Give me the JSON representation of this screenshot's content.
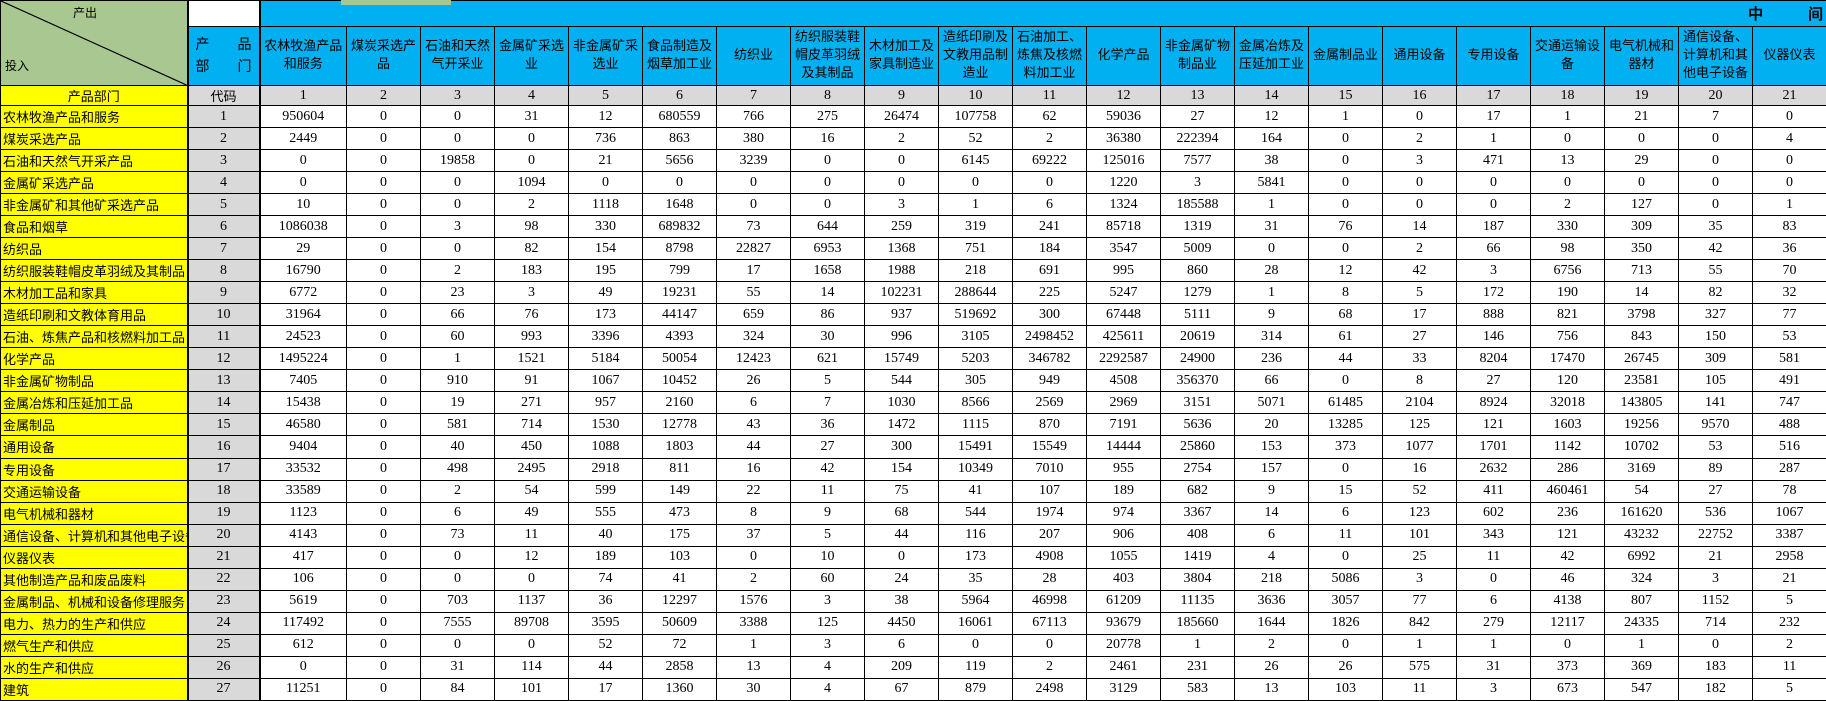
{
  "colors": {
    "header_blue": "#00B0F0",
    "label_yellow": "#FFFF00",
    "code_gray": "#D9D9D9",
    "corner_green": "#A9C791"
  },
  "table": {
    "corner": {
      "top_label": "产出",
      "bottom_label": "投入"
    },
    "banner_label": "中　　　间",
    "dept_line1": "产　　品",
    "dept_line2": "部　　门",
    "row_header_label": "产品部门",
    "code_label": "代码",
    "columns": [
      {
        "code": "1",
        "name": "农林牧渔产品和服务"
      },
      {
        "code": "2",
        "name": "煤炭采选产品"
      },
      {
        "code": "3",
        "name": "石油和天然气开采业"
      },
      {
        "code": "4",
        "name": "金属矿采选业"
      },
      {
        "code": "5",
        "name": "非金属矿采选业"
      },
      {
        "code": "6",
        "name": "食品制造及烟草加工业"
      },
      {
        "code": "7",
        "name": "纺织业"
      },
      {
        "code": "8",
        "name": "纺织服装鞋帽皮革羽绒及其制品"
      },
      {
        "code": "9",
        "name": "木材加工及家具制造业"
      },
      {
        "code": "10",
        "name": "造纸印刷及文教用品制造业"
      },
      {
        "code": "11",
        "name": "石油加工、炼焦及核燃料加工业"
      },
      {
        "code": "12",
        "name": "化学产品"
      },
      {
        "code": "13",
        "name": "非金属矿物制品业"
      },
      {
        "code": "14",
        "name": "金属冶炼及压延加工业"
      },
      {
        "code": "15",
        "name": "金属制品业"
      },
      {
        "code": "16",
        "name": "通用设备"
      },
      {
        "code": "17",
        "name": "专用设备"
      },
      {
        "code": "18",
        "name": "交通运输设备"
      },
      {
        "code": "19",
        "name": "电气机械和器材"
      },
      {
        "code": "20",
        "name": "通信设备、计算机和其他电子设备"
      },
      {
        "code": "21",
        "name": "仪器仪表"
      }
    ],
    "rows": [
      {
        "code": "1",
        "label": "农林牧渔产品和服务",
        "values": [
          950604,
          0,
          0,
          31,
          12,
          680559,
          766,
          275,
          26474,
          107758,
          62,
          59036,
          27,
          12,
          1,
          0,
          17,
          1,
          21,
          7,
          0
        ]
      },
      {
        "code": "2",
        "label": "煤炭采选产品",
        "values": [
          2449,
          0,
          0,
          0,
          736,
          863,
          380,
          16,
          2,
          52,
          2,
          36380,
          222394,
          164,
          0,
          2,
          1,
          0,
          0,
          0,
          4
        ]
      },
      {
        "code": "3",
        "label": "石油和天然气开采产品",
        "values": [
          0,
          0,
          19858,
          0,
          21,
          5656,
          3239,
          0,
          0,
          6145,
          69222,
          125016,
          7577,
          38,
          0,
          3,
          471,
          13,
          29,
          0,
          0
        ]
      },
      {
        "code": "4",
        "label": "金属矿采选产品",
        "values": [
          0,
          0,
          0,
          1094,
          0,
          0,
          0,
          0,
          0,
          0,
          0,
          1220,
          3,
          5841,
          0,
          0,
          0,
          0,
          0,
          0,
          0
        ]
      },
      {
        "code": "5",
        "label": "非金属矿和其他矿采选产品",
        "values": [
          10,
          0,
          0,
          2,
          1118,
          1648,
          0,
          0,
          3,
          1,
          6,
          1324,
          185588,
          1,
          0,
          0,
          0,
          2,
          127,
          0,
          1
        ]
      },
      {
        "code": "6",
        "label": "食品和烟草",
        "values": [
          1086038,
          0,
          3,
          98,
          330,
          689832,
          73,
          644,
          259,
          319,
          241,
          85718,
          1319,
          31,
          76,
          14,
          187,
          330,
          309,
          35,
          83
        ]
      },
      {
        "code": "7",
        "label": "纺织品",
        "values": [
          29,
          0,
          0,
          82,
          154,
          8798,
          22827,
          6953,
          1368,
          751,
          184,
          3547,
          5009,
          0,
          0,
          2,
          66,
          98,
          350,
          42,
          36
        ]
      },
      {
        "code": "8",
        "label": "纺织服装鞋帽皮革羽绒及其制品",
        "values": [
          16790,
          0,
          2,
          183,
          195,
          799,
          17,
          1658,
          1988,
          218,
          691,
          995,
          860,
          28,
          12,
          42,
          3,
          6756,
          713,
          55,
          70
        ]
      },
      {
        "code": "9",
        "label": "木材加工品和家具",
        "values": [
          6772,
          0,
          23,
          3,
          49,
          19231,
          55,
          14,
          102231,
          288644,
          225,
          5247,
          1279,
          1,
          8,
          5,
          172,
          190,
          14,
          82,
          32
        ]
      },
      {
        "code": "10",
        "label": "造纸印刷和文教体育用品",
        "values": [
          31964,
          0,
          66,
          76,
          173,
          44147,
          659,
          86,
          937,
          519692,
          300,
          67448,
          5111,
          9,
          68,
          17,
          888,
          821,
          3798,
          327,
          77
        ]
      },
      {
        "code": "11",
        "label": "石油、炼焦产品和核燃料加工品",
        "values": [
          24523,
          0,
          60,
          993,
          3396,
          4393,
          324,
          30,
          996,
          3105,
          2498452,
          425611,
          20619,
          314,
          61,
          27,
          146,
          756,
          843,
          150,
          53
        ]
      },
      {
        "code": "12",
        "label": "化学产品",
        "values": [
          1495224,
          0,
          1,
          1521,
          5184,
          50054,
          12423,
          621,
          15749,
          5203,
          346782,
          2292587,
          24900,
          236,
          44,
          33,
          8204,
          17470,
          26745,
          309,
          581
        ]
      },
      {
        "code": "13",
        "label": "非金属矿物制品",
        "values": [
          7405,
          0,
          910,
          91,
          1067,
          10452,
          26,
          5,
          544,
          305,
          949,
          4508,
          356370,
          66,
          0,
          8,
          27,
          120,
          23581,
          105,
          491
        ]
      },
      {
        "code": "14",
        "label": "金属冶炼和压延加工品",
        "values": [
          15438,
          0,
          19,
          271,
          957,
          2160,
          6,
          7,
          1030,
          8566,
          2569,
          2969,
          3151,
          5071,
          61485,
          2104,
          8924,
          32018,
          143805,
          141,
          747
        ]
      },
      {
        "code": "15",
        "label": "金属制品",
        "values": [
          46580,
          0,
          581,
          714,
          1530,
          12778,
          43,
          36,
          1472,
          1115,
          870,
          7191,
          5636,
          20,
          13285,
          125,
          121,
          1603,
          19256,
          9570,
          488
        ]
      },
      {
        "code": "16",
        "label": "通用设备",
        "values": [
          9404,
          0,
          40,
          450,
          1088,
          1803,
          44,
          27,
          300,
          15491,
          15549,
          14444,
          25860,
          153,
          373,
          1077,
          1701,
          1142,
          10702,
          53,
          516
        ]
      },
      {
        "code": "17",
        "label": "专用设备",
        "values": [
          33532,
          0,
          498,
          2495,
          2918,
          811,
          16,
          42,
          154,
          10349,
          7010,
          955,
          2754,
          157,
          0,
          16,
          2632,
          286,
          3169,
          89,
          287
        ]
      },
      {
        "code": "18",
        "label": "交通运输设备",
        "values": [
          33589,
          0,
          2,
          54,
          599,
          149,
          22,
          11,
          75,
          41,
          107,
          189,
          682,
          9,
          15,
          52,
          411,
          460461,
          54,
          27,
          78
        ]
      },
      {
        "code": "19",
        "label": "电气机械和器材",
        "values": [
          1123,
          0,
          6,
          49,
          555,
          473,
          8,
          9,
          68,
          544,
          1974,
          974,
          3367,
          14,
          6,
          123,
          602,
          236,
          161620,
          536,
          1067
        ]
      },
      {
        "code": "20",
        "label": "通信设备、计算机和其他电子设备",
        "values": [
          4143,
          0,
          73,
          11,
          40,
          175,
          37,
          5,
          44,
          116,
          207,
          906,
          408,
          6,
          11,
          101,
          343,
          121,
          43232,
          22752,
          3387
        ]
      },
      {
        "code": "21",
        "label": "仪器仪表",
        "values": [
          417,
          0,
          0,
          12,
          189,
          103,
          0,
          10,
          0,
          173,
          4908,
          1055,
          1419,
          4,
          0,
          25,
          11,
          42,
          6992,
          21,
          2958
        ]
      },
      {
        "code": "22",
        "label": "其他制造产品和废品废料",
        "values": [
          106,
          0,
          0,
          0,
          74,
          41,
          2,
          60,
          24,
          35,
          28,
          403,
          3804,
          218,
          5086,
          3,
          0,
          46,
          324,
          3,
          21
        ]
      },
      {
        "code": "23",
        "label": "金属制品、机械和设备修理服务",
        "values": [
          5619,
          0,
          703,
          1137,
          36,
          12297,
          1576,
          3,
          38,
          5964,
          46998,
          61209,
          11135,
          3636,
          3057,
          77,
          6,
          4138,
          807,
          1152,
          5
        ]
      },
      {
        "code": "24",
        "label": "电力、热力的生产和供应",
        "values": [
          117492,
          0,
          7555,
          89708,
          3595,
          50609,
          3388,
          125,
          4450,
          16061,
          67113,
          93679,
          185660,
          1644,
          1826,
          842,
          279,
          12117,
          24335,
          714,
          232
        ]
      },
      {
        "code": "25",
        "label": "燃气生产和供应",
        "values": [
          612,
          0,
          0,
          0,
          52,
          72,
          1,
          3,
          6,
          0,
          0,
          20778,
          1,
          2,
          0,
          1,
          1,
          0,
          1,
          0,
          2
        ]
      },
      {
        "code": "26",
        "label": "水的生产和供应",
        "values": [
          0,
          0,
          31,
          114,
          44,
          2858,
          13,
          4,
          209,
          119,
          2,
          2461,
          231,
          26,
          26,
          575,
          31,
          373,
          369,
          183,
          11
        ]
      },
      {
        "code": "27",
        "label": "建筑",
        "values": [
          11251,
          0,
          84,
          101,
          17,
          1360,
          30,
          4,
          67,
          879,
          2498,
          3129,
          583,
          13,
          103,
          11,
          3,
          673,
          547,
          182,
          5
        ]
      }
    ]
  }
}
